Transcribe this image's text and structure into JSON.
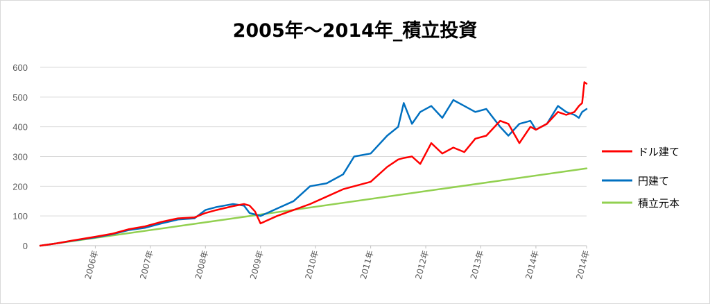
{
  "chart_data": {
    "type": "line",
    "title": "2005年～2014年_積立投資",
    "xlabel": "",
    "ylabel": "",
    "ylim": [
      0,
      600
    ],
    "y_ticks": [
      0,
      100,
      200,
      300,
      400,
      500,
      600
    ],
    "x_range": [
      2005.0,
      2014.92
    ],
    "x_tick_labels": [
      "2006年",
      "2007年",
      "2008年",
      "2009年",
      "2010年",
      "2011年",
      "2012年",
      "2013年",
      "2014年",
      "2014年"
    ],
    "x_tick_positions": [
      2006.0,
      2007.0,
      2008.0,
      2009.0,
      2010.0,
      2011.0,
      2012.0,
      2013.0,
      2014.0,
      2014.92
    ],
    "grid": true,
    "legend_position": "right",
    "series": [
      {
        "name": "ドル建て",
        "color": "#ff0000",
        "x": [
          2005.0,
          2005.3,
          2005.6,
          2006.0,
          2006.3,
          2006.6,
          2006.9,
          2007.2,
          2007.5,
          2007.8,
          2008.0,
          2008.2,
          2008.5,
          2008.7,
          2008.8,
          2008.9,
          2009.0,
          2009.3,
          2009.6,
          2009.9,
          2010.2,
          2010.5,
          2010.7,
          2011.0,
          2011.3,
          2011.5,
          2011.6,
          2011.75,
          2011.9,
          2012.1,
          2012.3,
          2012.5,
          2012.7,
          2012.9,
          2013.1,
          2013.35,
          2013.5,
          2013.7,
          2013.9,
          2014.0,
          2014.2,
          2014.4,
          2014.55,
          2014.7,
          2014.78,
          2014.84,
          2014.88,
          2014.92
        ],
        "values": [
          0,
          8,
          18,
          30,
          40,
          55,
          65,
          80,
          92,
          95,
          110,
          120,
          133,
          140,
          135,
          115,
          75,
          100,
          120,
          140,
          165,
          190,
          200,
          215,
          265,
          290,
          295,
          300,
          275,
          345,
          310,
          330,
          315,
          360,
          370,
          420,
          410,
          345,
          400,
          390,
          410,
          450,
          440,
          450,
          470,
          480,
          550,
          545
        ]
      },
      {
        "name": "円建て",
        "color": "#0070c0",
        "x": [
          2005.0,
          2005.3,
          2005.6,
          2006.0,
          2006.3,
          2006.6,
          2006.9,
          2007.2,
          2007.5,
          2007.8,
          2008.0,
          2008.2,
          2008.5,
          2008.7,
          2008.8,
          2008.9,
          2009.0,
          2009.3,
          2009.6,
          2009.9,
          2010.2,
          2010.5,
          2010.7,
          2011.0,
          2011.3,
          2011.5,
          2011.6,
          2011.75,
          2011.9,
          2012.1,
          2012.3,
          2012.5,
          2012.7,
          2012.9,
          2013.1,
          2013.35,
          2013.5,
          2013.7,
          2013.9,
          2014.0,
          2014.2,
          2014.4,
          2014.55,
          2014.7,
          2014.78,
          2014.84,
          2014.88,
          2014.92
        ],
        "values": [
          0,
          8,
          17,
          28,
          38,
          52,
          60,
          75,
          88,
          92,
          120,
          130,
          140,
          135,
          110,
          105,
          100,
          125,
          150,
          200,
          210,
          240,
          300,
          310,
          370,
          400,
          480,
          410,
          450,
          470,
          430,
          490,
          470,
          450,
          460,
          400,
          370,
          410,
          420,
          390,
          410,
          470,
          450,
          440,
          430,
          450,
          455,
          460
        ]
      },
      {
        "name": "積立元本",
        "color": "#92d050",
        "x": [
          2005.0,
          2014.92
        ],
        "values": [
          0,
          260
        ]
      }
    ]
  }
}
